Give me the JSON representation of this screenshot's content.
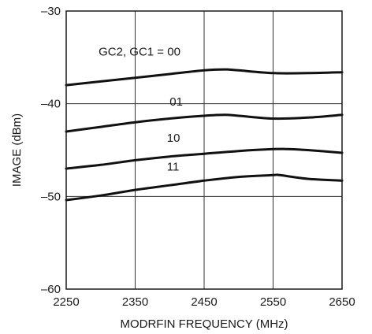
{
  "chart_data": {
    "type": "line",
    "title": "",
    "xlabel": "MODRFIN FREQUENCY (MHz)",
    "ylabel": "IMAGE (dBm)",
    "xlim": [
      2250,
      2650
    ],
    "ylim": [
      -60,
      -30
    ],
    "xticks": [
      2250,
      2350,
      2450,
      2550,
      2650
    ],
    "yticks": [
      -30,
      -40,
      -50,
      -60
    ],
    "ytick_labels": [
      "–30",
      "–40",
      "–50",
      "–60"
    ],
    "grid": true,
    "series": [
      {
        "label": "GC2, GC1 = 00",
        "x": [
          2250,
          2300,
          2350,
          2400,
          2450,
          2480,
          2500,
          2550,
          2600,
          2650
        ],
        "y": [
          -38.0,
          -37.6,
          -37.2,
          -36.8,
          -36.4,
          -36.3,
          -36.4,
          -36.7,
          -36.7,
          -36.6
        ]
      },
      {
        "label": "01",
        "x": [
          2250,
          2300,
          2350,
          2400,
          2450,
          2480,
          2500,
          2550,
          2600,
          2650
        ],
        "y": [
          -43.0,
          -42.5,
          -42.0,
          -41.6,
          -41.3,
          -41.2,
          -41.3,
          -41.6,
          -41.5,
          -41.2
        ]
      },
      {
        "label": "10",
        "x": [
          2250,
          2300,
          2350,
          2400,
          2450,
          2500,
          2550,
          2570,
          2600,
          2650
        ],
        "y": [
          -47.0,
          -46.6,
          -46.1,
          -45.7,
          -45.4,
          -45.1,
          -44.9,
          -44.9,
          -45.0,
          -45.3
        ]
      },
      {
        "label": "11",
        "x": [
          2250,
          2300,
          2350,
          2400,
          2450,
          2500,
          2550,
          2560,
          2600,
          2650
        ],
        "y": [
          -50.4,
          -49.9,
          -49.3,
          -48.8,
          -48.3,
          -47.9,
          -47.7,
          -47.7,
          -48.1,
          -48.3
        ]
      }
    ]
  }
}
